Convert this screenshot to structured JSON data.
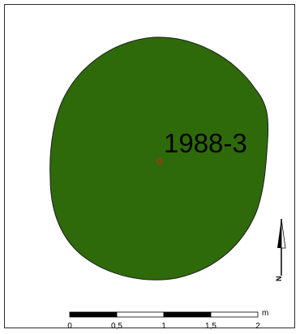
{
  "map": {
    "feature_label": "1988-3",
    "feature_color": "#2e6a0a",
    "feature_outline_color": "#1f1f1f",
    "point_color": "#c0281e"
  },
  "scale_bar": {
    "unit": "m",
    "ticks": [
      "0",
      "0,5",
      "1",
      "1,5",
      "2"
    ]
  },
  "north_arrow": {
    "letter": "N"
  }
}
